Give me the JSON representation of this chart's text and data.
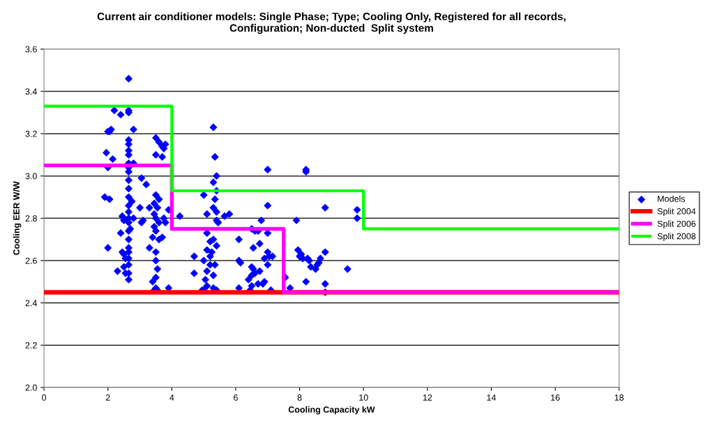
{
  "chart_data": {
    "type": "scatter",
    "title": "Current air conditioner models: Single Phase; Type; Cooling Only, Registered for all records,\nConfiguration; Non-ducted  Split system",
    "xlabel": "Cooling Capacity kW",
    "ylabel": "Cooling EER W/W",
    "xlim": [
      0,
      18
    ],
    "xticks": [
      0,
      2,
      4,
      6,
      8,
      10,
      12,
      14,
      16,
      18
    ],
    "ylim": [
      2.0,
      3.6
    ],
    "yticks": [
      {
        "value": 2.0,
        "label": "2.0"
      },
      2.2,
      2.4,
      2.6,
      2.8,
      {
        "value": 3.0,
        "label": "3.0"
      },
      3.2,
      3.4,
      3.6
    ],
    "grid": "y",
    "legend": "right",
    "series": [
      {
        "name": "Models",
        "marker": "diamond",
        "color": "#0000ff",
        "x": [
          2.0,
          2.05,
          1.95,
          2.0,
          2.05,
          1.9,
          2.0,
          2.15,
          2.2,
          2.1,
          2.65,
          2.65,
          2.65,
          2.65,
          2.65,
          2.65,
          2.65,
          2.65,
          2.65,
          2.65,
          2.65,
          2.65,
          2.65,
          2.65,
          2.65,
          2.65,
          2.65,
          2.65,
          2.65,
          2.65,
          2.65,
          2.65,
          2.65,
          2.65,
          2.65,
          2.4,
          2.45,
          2.5,
          2.4,
          2.5,
          2.55,
          2.5,
          2.3,
          2.55,
          2.5,
          2.45,
          2.8,
          2.8,
          3.05,
          3.2,
          2.75,
          3.0,
          3.3,
          2.8,
          3.05,
          3.1,
          2.7,
          3.4,
          3.5,
          3.6,
          3.7,
          3.8,
          3.75,
          3.5,
          3.7,
          3.5,
          3.6,
          3.45,
          3.55,
          3.45,
          3.5,
          3.6,
          3.45,
          3.5,
          3.7,
          3.6,
          3.3,
          3.5,
          3.5,
          3.55,
          3.5,
          3.4,
          3.5,
          3.45,
          3.55,
          3.8,
          3.75,
          3.9,
          3.9,
          4.25,
          5.3,
          5.35,
          5.4,
          5.3,
          5.4,
          5.0,
          5.35,
          5.3,
          5.4,
          5.1,
          5.4,
          5.45,
          5.65,
          5.8,
          5.1,
          5.3,
          5.2,
          5.4,
          5.1,
          5.2,
          5.0,
          5.35,
          5.1,
          5.3,
          5.05,
          5.1,
          5.3,
          5.0,
          5.4,
          4.7,
          4.7,
          5.2,
          5.25,
          4.95,
          7.0,
          7.0,
          6.8,
          6.5,
          6.6,
          6.7,
          7.0,
          6.1,
          6.75,
          6.55,
          7.0,
          7.15,
          6.1,
          6.15,
          6.5,
          6.55,
          6.75,
          6.5,
          6.4,
          6.7,
          6.5,
          6.1,
          6.45,
          7.1,
          6.9,
          6.9,
          7.05,
          7.0,
          6.6,
          6.85,
          8.2,
          8.2,
          8.8,
          9.8,
          9.8,
          7.9,
          7.95,
          8.05,
          8.1,
          8.25,
          8.3,
          8.6,
          8.5,
          7.55,
          8.2,
          7.7,
          8.8,
          8.8,
          8.8,
          9.5,
          8.65,
          8.55,
          8.0,
          8.35
        ],
        "values": [
          3.21,
          3.21,
          3.11,
          3.04,
          2.89,
          2.9,
          2.66,
          3.08,
          3.31,
          3.22,
          3.46,
          3.3,
          3.31,
          3.17,
          3.15,
          3.12,
          3.1,
          3.06,
          3.04,
          3.02,
          2.98,
          2.94,
          2.9,
          2.86,
          2.83,
          2.8,
          2.78,
          2.74,
          2.7,
          2.66,
          2.64,
          2.61,
          2.58,
          2.54,
          2.51,
          3.29,
          2.81,
          2.8,
          2.73,
          2.63,
          2.61,
          2.57,
          2.55,
          2.54,
          2.79,
          2.64,
          3.22,
          3.06,
          2.99,
          2.96,
          2.88,
          2.85,
          2.85,
          2.8,
          2.78,
          2.79,
          2.75,
          2.71,
          3.18,
          3.16,
          3.14,
          3.15,
          3.13,
          3.1,
          3.09,
          2.91,
          2.89,
          2.87,
          2.85,
          2.82,
          2.8,
          2.78,
          2.76,
          2.74,
          2.71,
          2.7,
          2.66,
          2.64,
          2.6,
          2.56,
          2.52,
          2.5,
          2.47,
          2.46,
          2.46,
          2.78,
          2.8,
          2.84,
          2.47,
          2.81,
          3.23,
          3.09,
          3.0,
          2.97,
          2.93,
          2.91,
          2.89,
          2.85,
          2.83,
          2.82,
          2.79,
          2.78,
          2.81,
          2.82,
          2.73,
          2.7,
          2.69,
          2.67,
          2.65,
          2.62,
          2.6,
          2.58,
          2.55,
          2.53,
          2.51,
          2.48,
          2.47,
          2.46,
          2.46,
          2.62,
          2.54,
          2.58,
          2.64,
          2.46,
          3.03,
          2.86,
          2.79,
          2.75,
          2.74,
          2.74,
          2.73,
          2.7,
          2.68,
          2.66,
          2.64,
          2.62,
          2.6,
          2.59,
          2.57,
          2.56,
          2.55,
          2.53,
          2.51,
          2.49,
          2.48,
          2.47,
          2.46,
          2.46,
          2.5,
          2.61,
          2.62,
          2.58,
          2.54,
          2.49,
          3.03,
          3.02,
          2.85,
          2.84,
          2.8,
          2.79,
          2.65,
          2.63,
          2.61,
          2.61,
          2.6,
          2.59,
          2.56,
          2.52,
          2.5,
          2.47,
          2.45,
          2.49,
          2.64,
          2.56,
          2.61,
          2.58,
          2.62,
          2.57
        ]
      },
      {
        "name": "Split 2004",
        "type": "line",
        "color": "#ff0000",
        "x": [
          0,
          18
        ],
        "values": [
          2.45,
          2.45
        ]
      },
      {
        "name": "Split 2006",
        "type": "line",
        "color": "#ff00ff",
        "x": [
          0,
          4,
          4,
          7.5,
          7.5,
          18
        ],
        "values": [
          3.05,
          3.05,
          2.75,
          2.75,
          2.45,
          2.45
        ]
      },
      {
        "name": "Split 2008",
        "type": "line",
        "color": "#00ff00",
        "x": [
          0,
          4,
          4,
          10,
          10,
          18
        ],
        "values": [
          3.33,
          3.33,
          2.93,
          2.93,
          2.75,
          2.75
        ]
      }
    ]
  }
}
